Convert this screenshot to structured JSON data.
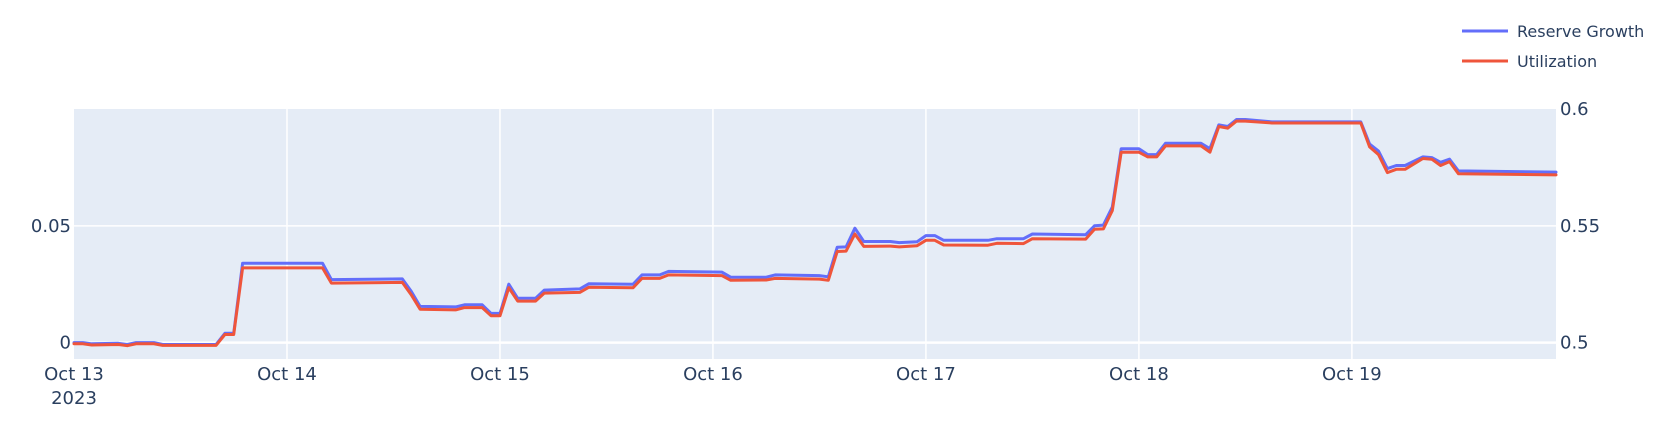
{
  "chart_data": {
    "type": "line",
    "title": "",
    "xlabel": "",
    "ylabel": "",
    "x_range": [
      "2023-10-13T00:00",
      "2023-10-19T23:00"
    ],
    "x_ticks": [
      {
        "x": "2023-10-13T00:00",
        "label": "Oct 13",
        "sublabel": "2023"
      },
      {
        "x": "2023-10-14T00:00",
        "label": "Oct 14"
      },
      {
        "x": "2023-10-15T00:00",
        "label": "Oct 15"
      },
      {
        "x": "2023-10-16T00:00",
        "label": "Oct 16"
      },
      {
        "x": "2023-10-17T00:00",
        "label": "Oct 17"
      },
      {
        "x": "2023-10-18T00:00",
        "label": "Oct 18"
      },
      {
        "x": "2023-10-19T00:00",
        "label": "Oct 19"
      }
    ],
    "y_left": {
      "range": [
        -0.007,
        0.1
      ],
      "ticks": [
        {
          "value": 0,
          "label": "0"
        },
        {
          "value": 0.05,
          "label": "0.05"
        }
      ]
    },
    "y_right": {
      "range": [
        0.493,
        0.6
      ],
      "ticks": [
        {
          "value": 0.5,
          "label": "0.5"
        },
        {
          "value": 0.55,
          "label": "0.55"
        },
        {
          "value": 0.6,
          "label": "0.6"
        }
      ]
    },
    "grid": true,
    "legend_position": "top-right",
    "plot_background": "#e5ecf6",
    "series": [
      {
        "name": "Reserve Growth",
        "axis": "left",
        "color": "#636efa",
        "points": [
          [
            "2023-10-13T00:00",
            0.0
          ],
          [
            "2023-10-13T01:00",
            0.0
          ],
          [
            "2023-10-13T02:00",
            -0.0005
          ],
          [
            "2023-10-13T05:00",
            -0.0003
          ],
          [
            "2023-10-13T06:00",
            -0.0008
          ],
          [
            "2023-10-13T07:00",
            0.0
          ],
          [
            "2023-10-13T09:00",
            0.0
          ],
          [
            "2023-10-13T10:00",
            -0.0008
          ],
          [
            "2023-10-13T16:00",
            -0.0008
          ],
          [
            "2023-10-13T17:00",
            0.004
          ],
          [
            "2023-10-13T18:00",
            0.004
          ],
          [
            "2023-10-13T19:00",
            0.034
          ],
          [
            "2023-10-14T04:00",
            0.034
          ],
          [
            "2023-10-14T05:00",
            0.027
          ],
          [
            "2023-10-14T13:00",
            0.0273
          ],
          [
            "2023-10-14T14:00",
            0.022
          ],
          [
            "2023-10-14T15:00",
            0.0155
          ],
          [
            "2023-10-14T19:00",
            0.0153
          ],
          [
            "2023-10-14T20:00",
            0.0162
          ],
          [
            "2023-10-14T22:00",
            0.0162
          ],
          [
            "2023-10-14T23:00",
            0.0125
          ],
          [
            "2023-10-15T00:00",
            0.0125
          ],
          [
            "2023-10-15T01:00",
            0.025
          ],
          [
            "2023-10-15T02:00",
            0.019
          ],
          [
            "2023-10-15T04:00",
            0.019
          ],
          [
            "2023-10-15T05:00",
            0.0225
          ],
          [
            "2023-10-15T09:00",
            0.023
          ],
          [
            "2023-10-15T10:00",
            0.0252
          ],
          [
            "2023-10-15T15:00",
            0.025
          ],
          [
            "2023-10-15T16:00",
            0.029
          ],
          [
            "2023-10-15T18:00",
            0.029
          ],
          [
            "2023-10-15T19:00",
            0.0305
          ],
          [
            "2023-10-16T01:00",
            0.0302
          ],
          [
            "2023-10-16T02:00",
            0.028
          ],
          [
            "2023-10-16T06:00",
            0.028
          ],
          [
            "2023-10-16T07:00",
            0.029
          ],
          [
            "2023-10-16T12:00",
            0.0287
          ],
          [
            "2023-10-16T13:00",
            0.0282
          ],
          [
            "2023-10-16T14:00",
            0.0408
          ],
          [
            "2023-10-16T15:00",
            0.041
          ],
          [
            "2023-10-16T16:00",
            0.049
          ],
          [
            "2023-10-16T17:00",
            0.0433
          ],
          [
            "2023-10-16T20:00",
            0.0433
          ],
          [
            "2023-10-16T21:00",
            0.0428
          ],
          [
            "2023-10-16T23:00",
            0.0432
          ],
          [
            "2023-10-17T00:00",
            0.0458
          ],
          [
            "2023-10-17T01:00",
            0.0458
          ],
          [
            "2023-10-17T02:00",
            0.0438
          ],
          [
            "2023-10-17T07:00",
            0.0438
          ],
          [
            "2023-10-17T08:00",
            0.0445
          ],
          [
            "2023-10-17T11:00",
            0.0445
          ],
          [
            "2023-10-17T12:00",
            0.0465
          ],
          [
            "2023-10-17T18:00",
            0.0462
          ],
          [
            "2023-10-17T19:00",
            0.05
          ],
          [
            "2023-10-17T20:00",
            0.0503
          ],
          [
            "2023-10-17T21:00",
            0.058
          ],
          [
            "2023-10-17T22:00",
            0.083
          ],
          [
            "2023-10-18T00:00",
            0.083
          ],
          [
            "2023-10-18T01:00",
            0.0805
          ],
          [
            "2023-10-18T02:00",
            0.0805
          ],
          [
            "2023-10-18T03:00",
            0.0853
          ],
          [
            "2023-10-18T07:00",
            0.0853
          ],
          [
            "2023-10-18T08:00",
            0.083
          ],
          [
            "2023-10-18T09:00",
            0.0932
          ],
          [
            "2023-10-18T10:00",
            0.0925
          ],
          [
            "2023-10-18T11:00",
            0.0955
          ],
          [
            "2023-10-18T12:00",
            0.0955
          ],
          [
            "2023-10-18T15:00",
            0.0945
          ],
          [
            "2023-10-19T01:00",
            0.0945
          ],
          [
            "2023-10-19T02:00",
            0.085
          ],
          [
            "2023-10-19T03:00",
            0.082
          ],
          [
            "2023-10-19T04:00",
            0.0745
          ],
          [
            "2023-10-19T05:00",
            0.0758
          ],
          [
            "2023-10-19T06:00",
            0.0758
          ],
          [
            "2023-10-19T08:00",
            0.0795
          ],
          [
            "2023-10-19T09:00",
            0.0792
          ],
          [
            "2023-10-19T10:00",
            0.0772
          ],
          [
            "2023-10-19T11:00",
            0.0785
          ],
          [
            "2023-10-19T12:00",
            0.0735
          ],
          [
            "2023-10-19T23:00",
            0.073
          ]
        ]
      },
      {
        "name": "Utilization",
        "axis": "right",
        "color": "#ef553b",
        "points": [
          [
            "2023-10-13T00:00",
            0.4995
          ],
          [
            "2023-10-13T01:00",
            0.4995
          ],
          [
            "2023-10-13T02:00",
            0.499
          ],
          [
            "2023-10-13T05:00",
            0.4992
          ],
          [
            "2023-10-13T06:00",
            0.4987
          ],
          [
            "2023-10-13T07:00",
            0.4995
          ],
          [
            "2023-10-13T09:00",
            0.4995
          ],
          [
            "2023-10-13T10:00",
            0.4988
          ],
          [
            "2023-10-13T16:00",
            0.4988
          ],
          [
            "2023-10-13T17:00",
            0.5035
          ],
          [
            "2023-10-13T18:00",
            0.5035
          ],
          [
            "2023-10-13T19:00",
            0.532
          ],
          [
            "2023-10-14T04:00",
            0.532
          ],
          [
            "2023-10-14T05:00",
            0.5255
          ],
          [
            "2023-10-14T13:00",
            0.5258
          ],
          [
            "2023-10-14T14:00",
            0.5205
          ],
          [
            "2023-10-14T15:00",
            0.5143
          ],
          [
            "2023-10-14T19:00",
            0.514
          ],
          [
            "2023-10-14T20:00",
            0.515
          ],
          [
            "2023-10-14T22:00",
            0.515
          ],
          [
            "2023-10-14T23:00",
            0.5115
          ],
          [
            "2023-10-15T00:00",
            0.5115
          ],
          [
            "2023-10-15T01:00",
            0.5235
          ],
          [
            "2023-10-15T02:00",
            0.5178
          ],
          [
            "2023-10-15T04:00",
            0.5178
          ],
          [
            "2023-10-15T05:00",
            0.5212
          ],
          [
            "2023-10-15T09:00",
            0.5215
          ],
          [
            "2023-10-15T10:00",
            0.5237
          ],
          [
            "2023-10-15T15:00",
            0.5235
          ],
          [
            "2023-10-15T16:00",
            0.5275
          ],
          [
            "2023-10-15T18:00",
            0.5275
          ],
          [
            "2023-10-15T19:00",
            0.529
          ],
          [
            "2023-10-16T01:00",
            0.5287
          ],
          [
            "2023-10-16T02:00",
            0.5267
          ],
          [
            "2023-10-16T06:00",
            0.5268
          ],
          [
            "2023-10-16T07:00",
            0.5275
          ],
          [
            "2023-10-16T12:00",
            0.5272
          ],
          [
            "2023-10-16T13:00",
            0.5267
          ],
          [
            "2023-10-16T14:00",
            0.539
          ],
          [
            "2023-10-16T15:00",
            0.5392
          ],
          [
            "2023-10-16T16:00",
            0.5465
          ],
          [
            "2023-10-16T17:00",
            0.5412
          ],
          [
            "2023-10-16T20:00",
            0.5413
          ],
          [
            "2023-10-16T21:00",
            0.541
          ],
          [
            "2023-10-16T23:00",
            0.5415
          ],
          [
            "2023-10-17T00:00",
            0.5438
          ],
          [
            "2023-10-17T01:00",
            0.5438
          ],
          [
            "2023-10-17T02:00",
            0.5418
          ],
          [
            "2023-10-17T07:00",
            0.5417
          ],
          [
            "2023-10-17T08:00",
            0.5425
          ],
          [
            "2023-10-17T11:00",
            0.5424
          ],
          [
            "2023-10-17T12:00",
            0.5445
          ],
          [
            "2023-10-17T18:00",
            0.5443
          ],
          [
            "2023-10-17T19:00",
            0.5485
          ],
          [
            "2023-10-17T20:00",
            0.5487
          ],
          [
            "2023-10-17T21:00",
            0.5565
          ],
          [
            "2023-10-17T22:00",
            0.5815
          ],
          [
            "2023-10-18T00:00",
            0.5815
          ],
          [
            "2023-10-18T01:00",
            0.5795
          ],
          [
            "2023-10-18T02:00",
            0.5795
          ],
          [
            "2023-10-18T03:00",
            0.5842
          ],
          [
            "2023-10-18T07:00",
            0.5842
          ],
          [
            "2023-10-18T08:00",
            0.5815
          ],
          [
            "2023-10-18T09:00",
            0.5925
          ],
          [
            "2023-10-18T10:00",
            0.5918
          ],
          [
            "2023-10-18T11:00",
            0.5948
          ],
          [
            "2023-10-18T12:00",
            0.5948
          ],
          [
            "2023-10-18T15:00",
            0.594
          ],
          [
            "2023-10-19T01:00",
            0.594
          ],
          [
            "2023-10-19T02:00",
            0.5838
          ],
          [
            "2023-10-19T03:00",
            0.5805
          ],
          [
            "2023-10-19T04:00",
            0.5728
          ],
          [
            "2023-10-19T05:00",
            0.5742
          ],
          [
            "2023-10-19T06:00",
            0.5742
          ],
          [
            "2023-10-19T08:00",
            0.5788
          ],
          [
            "2023-10-19T09:00",
            0.5785
          ],
          [
            "2023-10-19T10:00",
            0.5758
          ],
          [
            "2023-10-19T11:00",
            0.5775
          ],
          [
            "2023-10-19T12:00",
            0.5723
          ],
          [
            "2023-10-19T23:00",
            0.5718
          ]
        ]
      }
    ]
  }
}
